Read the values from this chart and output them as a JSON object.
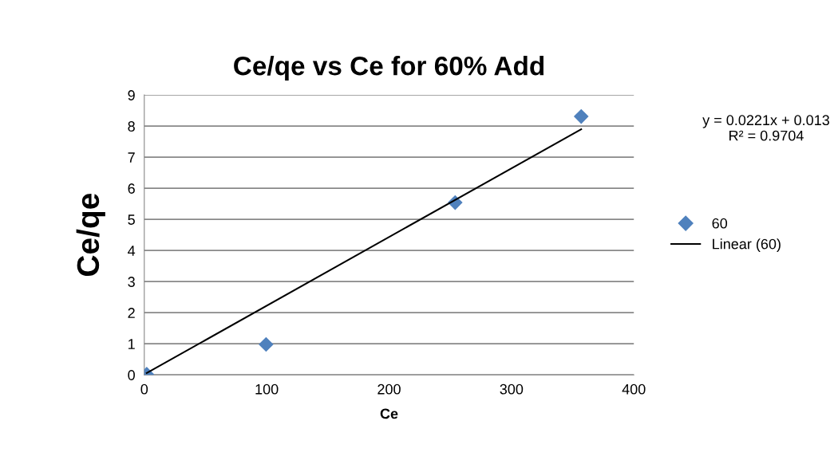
{
  "chart_data": {
    "type": "scatter",
    "title": "Ce/qe vs Ce for 60% Add",
    "xlabel": "Ce",
    "ylabel": "Ce/qe",
    "series": [
      {
        "name": "60",
        "color": "#4f81bd",
        "marker": "diamond",
        "x": [
          2,
          99.5,
          254,
          357
        ],
        "values": [
          0.02,
          0.98,
          5.54,
          8.31
        ]
      },
      {
        "name": "Linear (60)",
        "type": "line",
        "color": "#000000",
        "marker": "none",
        "line_style": "solid",
        "x": [
          2,
          357
        ],
        "values": [
          0.06,
          7.9
        ]
      }
    ],
    "annotations": [
      "y = 0.0221x + 0.013\nR² = 0.9704"
    ],
    "xlim": [
      0,
      400
    ],
    "xticks": [
      0,
      100,
      200,
      300,
      400
    ],
    "ylim": [
      0,
      9
    ],
    "yticks": [
      0,
      1,
      2,
      3,
      4,
      5,
      6,
      7,
      8,
      9
    ],
    "grid": "y",
    "legend": "right"
  }
}
